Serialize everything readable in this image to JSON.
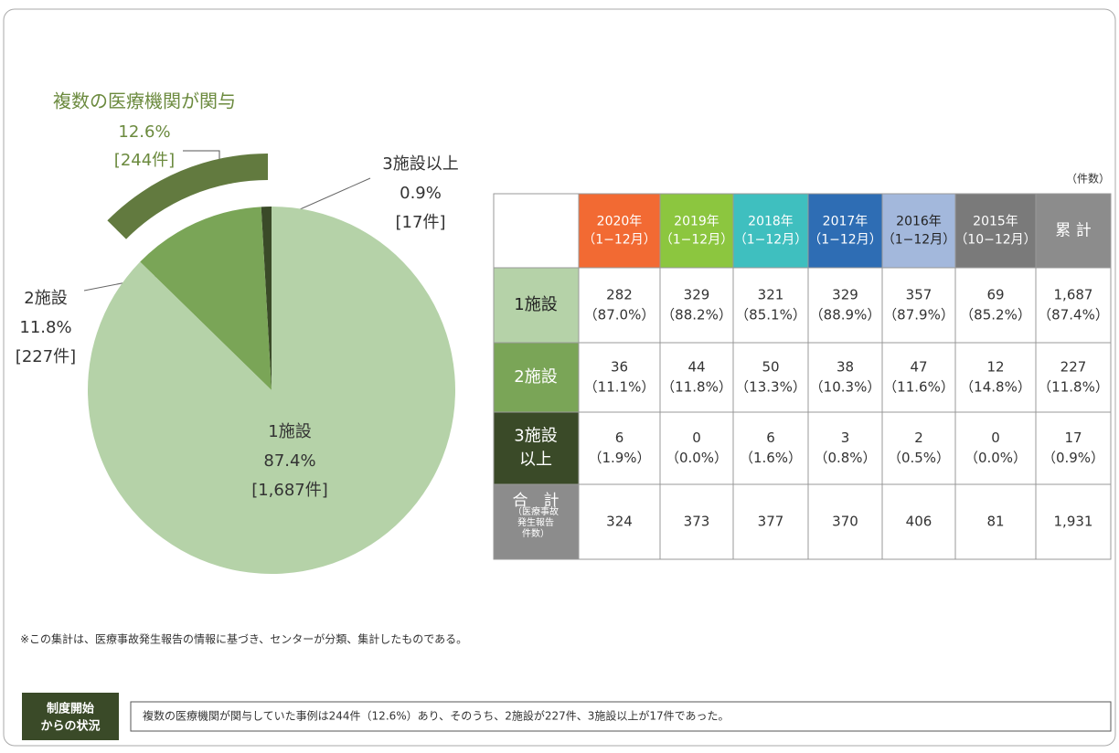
{
  "chart_data": {
    "type": "pie",
    "categories": [
      "1施設",
      "2施設",
      "3施設以上"
    ],
    "values": [
      87.4,
      11.8,
      0.9
    ],
    "value_labels": [
      "87.4%",
      "11.8%",
      "0.9%"
    ],
    "count_labels": [
      "[1,687件]",
      "[227件]",
      "[17件]"
    ],
    "colors": [
      "#b5d2a8",
      "#7aa557",
      "#3a4a28"
    ],
    "group": {
      "label": "複数の医療機関が関与",
      "value": 12.6,
      "value_label": "12.6%",
      "count_label": "[244件]",
      "color": "#627a3f"
    }
  },
  "table": {
    "unit": "（件数）",
    "columns": [
      [
        "2020年",
        "（1−12月）"
      ],
      [
        "2019年",
        "（1−12月）"
      ],
      [
        "2018年",
        "（1−12月）"
      ],
      [
        "2017年",
        "（1−12月）"
      ],
      [
        "2016年",
        "（1−12月）"
      ],
      [
        "2015年",
        "（10−12月）"
      ],
      [
        "累 計"
      ]
    ],
    "column_colors": [
      "#f26a33",
      "#8cc63f",
      "#3fbfbf",
      "#2e6db4",
      "#a3b8dc",
      "#7a7a7a",
      "#8c8c8c"
    ],
    "rows": [
      [
        "1施設"
      ],
      [
        "2施設"
      ],
      [
        "3施設",
        "以上"
      ],
      [
        "合　計",
        "（医療事故",
        "発生報告",
        "件数）"
      ]
    ],
    "row_colors": [
      "#b5d2a8",
      "#7aa557",
      "#3a4a28",
      "#8c8c8c"
    ],
    "cells": [
      [
        [
          "282",
          "（87.0%）"
        ],
        [
          "329",
          "（88.2%）"
        ],
        [
          "321",
          "（85.1%）"
        ],
        [
          "329",
          "（88.9%）"
        ],
        [
          "357",
          "（87.9%）"
        ],
        [
          "69",
          "（85.2%）"
        ],
        [
          "1,687",
          "（87.4%）"
        ]
      ],
      [
        [
          "36",
          "（11.1%）"
        ],
        [
          "44",
          "（11.8%）"
        ],
        [
          "50",
          "（13.3%）"
        ],
        [
          "38",
          "（10.3%）"
        ],
        [
          "47",
          "（11.6%）"
        ],
        [
          "12",
          "（14.8%）"
        ],
        [
          "227",
          "（11.8%）"
        ]
      ],
      [
        [
          "6",
          "（1.9%）"
        ],
        [
          "0",
          "（0.0%）"
        ],
        [
          "6",
          "（1.6%）"
        ],
        [
          "3",
          "（0.8%）"
        ],
        [
          "2",
          "（0.5%）"
        ],
        [
          "0",
          "（0.0%）"
        ],
        [
          "17",
          "（0.9%）"
        ]
      ],
      [
        [
          "324"
        ],
        [
          "373"
        ],
        [
          "377"
        ],
        [
          "370"
        ],
        [
          "406"
        ],
        [
          "81"
        ],
        [
          "1,931"
        ]
      ]
    ]
  },
  "footnote": "※この集計は、医療事故発生報告の情報に基づき、センターが分類、集計したものである。",
  "badge": [
    "制度開始",
    "からの状況"
  ],
  "summary": "複数の医療機関が関与していた事例は244件（12.6%）あり、そのうち、2施設が227件、3施設以上が17件であった。"
}
